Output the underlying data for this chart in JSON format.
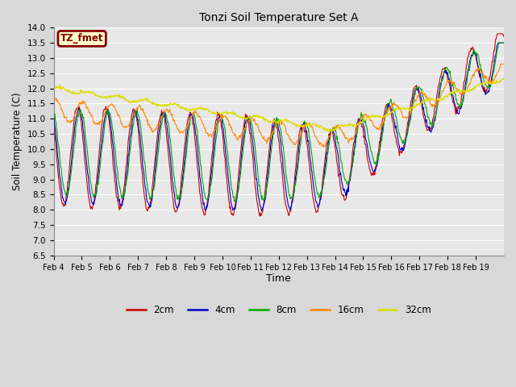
{
  "title": "Tonzi Soil Temperature Set A",
  "xlabel": "Time",
  "ylabel": "Soil Temperature (C)",
  "ylim": [
    6.5,
    14.0
  ],
  "yticks": [
    6.5,
    7.0,
    7.5,
    8.0,
    8.5,
    9.0,
    9.5,
    10.0,
    10.5,
    11.0,
    11.5,
    12.0,
    12.5,
    13.0,
    13.5,
    14.0
  ],
  "colors": {
    "2cm": "#cc0000",
    "4cm": "#0000cc",
    "8cm": "#00aa00",
    "16cm": "#ff8800",
    "32cm": "#dddd00"
  },
  "annotation_text": "TZ_fmet",
  "annotation_bg": "#ffffcc",
  "annotation_border": "#880000",
  "plot_bg": "#e8e8e8",
  "grid_color": "#ffffff",
  "fig_bg": "#d8d8d8",
  "n_days": 16,
  "pts_per_day": 48,
  "xtick_start_day": 4,
  "legend_labels": [
    "2cm",
    "4cm",
    "8cm",
    "16cm",
    "32cm"
  ]
}
